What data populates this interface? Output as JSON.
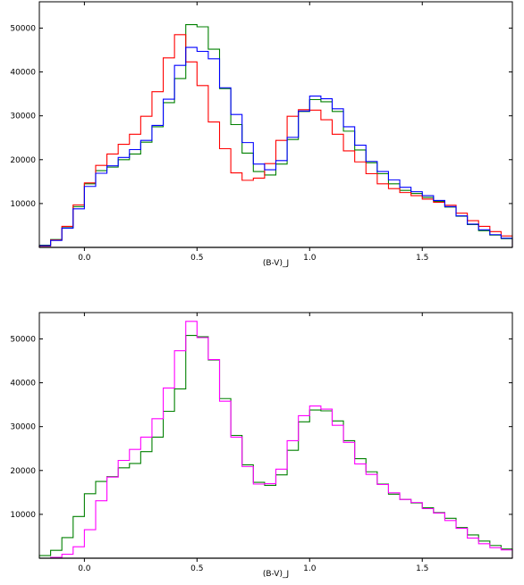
{
  "chart_data": [
    {
      "type": "line",
      "step": "histogram",
      "xlabel": "(B-V)_J",
      "ylabel": "",
      "title": "",
      "xlim": [
        -0.2,
        1.9
      ],
      "ylim": [
        0,
        56000
      ],
      "xticks": [
        0.0,
        0.5,
        1.0,
        1.5
      ],
      "xtick_labels": [
        "0.0",
        "0.5",
        "1.0",
        "1.5"
      ],
      "yticks": [
        10000,
        20000,
        30000,
        40000,
        50000
      ],
      "ytick_labels": [
        "10000",
        "20000",
        "30000",
        "40000",
        "50000"
      ],
      "bin_edges": [
        -0.2,
        -0.15,
        -0.1,
        -0.05,
        0.0,
        0.05,
        0.1,
        0.15,
        0.2,
        0.25,
        0.3,
        0.35,
        0.4,
        0.45,
        0.5,
        0.55,
        0.6,
        0.65,
        0.7,
        0.75,
        0.8,
        0.85,
        0.9,
        0.95,
        1.0,
        1.05,
        1.1,
        1.15,
        1.2,
        1.25,
        1.3,
        1.35,
        1.4,
        1.45,
        1.5,
        1.55,
        1.6,
        1.65,
        1.7,
        1.75,
        1.8,
        1.85,
        1.9
      ],
      "series": [
        {
          "color": "#008000",
          "values": [
            500,
            1800,
            4500,
            9300,
            14500,
            17500,
            18300,
            20000,
            21300,
            24000,
            27500,
            33000,
            38500,
            50800,
            50300,
            45200,
            36200,
            28000,
            21500,
            17300,
            16500,
            19000,
            24600,
            31000,
            33700,
            33200,
            31000,
            26500,
            22200,
            19300,
            16800,
            14500,
            13000,
            12300,
            11400,
            10500,
            9200,
            7100,
            5200,
            3800,
            2800,
            2000
          ]
        },
        {
          "color": "#ff0000",
          "values": [
            300,
            1700,
            4800,
            9700,
            14700,
            18700,
            21300,
            23500,
            25800,
            29900,
            35500,
            43200,
            48500,
            42300,
            36900,
            28600,
            22500,
            17000,
            15300,
            15800,
            19100,
            24400,
            29900,
            31400,
            31300,
            29100,
            25800,
            22000,
            19500,
            16800,
            14500,
            13400,
            12500,
            11800,
            11000,
            10300,
            9600,
            7800,
            6100,
            4800,
            3600,
            2600
          ]
        },
        {
          "color": "#0000ff",
          "values": [
            400,
            1600,
            4400,
            8800,
            13900,
            16900,
            18600,
            20500,
            22300,
            24400,
            27800,
            33800,
            41500,
            45600,
            44700,
            43000,
            36400,
            30300,
            23900,
            19000,
            17700,
            19800,
            25100,
            31100,
            34500,
            33900,
            31600,
            27500,
            23300,
            19600,
            17300,
            15400,
            13700,
            12700,
            11800,
            10700,
            9300,
            7200,
            5300,
            4000,
            2900,
            2100
          ]
        }
      ]
    },
    {
      "type": "line",
      "step": "histogram",
      "xlabel": "(B-V)_J",
      "ylabel": "",
      "title": "",
      "xlim": [
        -0.2,
        1.9
      ],
      "ylim": [
        0,
        56000
      ],
      "xticks": [
        0.0,
        0.5,
        1.0,
        1.5
      ],
      "xtick_labels": [
        "0.0",
        "0.5",
        "1.0",
        "1.5"
      ],
      "yticks": [
        10000,
        20000,
        30000,
        40000,
        50000
      ],
      "ytick_labels": [
        "10000",
        "20000",
        "30000",
        "40000",
        "50000"
      ],
      "bin_edges": [
        -0.2,
        -0.15,
        -0.1,
        -0.05,
        0.0,
        0.05,
        0.1,
        0.15,
        0.2,
        0.25,
        0.3,
        0.35,
        0.4,
        0.45,
        0.5,
        0.55,
        0.6,
        0.65,
        0.7,
        0.75,
        0.8,
        0.85,
        0.9,
        0.95,
        1.0,
        1.05,
        1.1,
        1.15,
        1.2,
        1.25,
        1.3,
        1.35,
        1.4,
        1.45,
        1.5,
        1.55,
        1.6,
        1.65,
        1.7,
        1.75,
        1.8,
        1.85,
        1.9
      ],
      "series": [
        {
          "color": "#008000",
          "values": [
            600,
            1800,
            4700,
            9500,
            14700,
            17500,
            18600,
            20600,
            21600,
            24300,
            27600,
            33500,
            38600,
            50800,
            50500,
            45200,
            36400,
            28000,
            21300,
            17300,
            16600,
            19000,
            24600,
            31100,
            33800,
            33600,
            31300,
            26800,
            22700,
            19700,
            16900,
            14600,
            13400,
            12600,
            11500,
            10400,
            9100,
            7000,
            5300,
            3900,
            2900,
            2100
          ]
        },
        {
          "color": "#ff00ff",
          "values": [
            0,
            200,
            900,
            2600,
            6500,
            13100,
            18500,
            22300,
            24800,
            27600,
            31800,
            38800,
            47300,
            54000,
            50300,
            45300,
            35800,
            27600,
            20900,
            16900,
            17000,
            20300,
            26800,
            32500,
            34700,
            34000,
            30300,
            26400,
            21500,
            19100,
            16800,
            14900,
            13400,
            12700,
            11300,
            10300,
            8600,
            6800,
            4600,
            3300,
            2400,
            1900
          ]
        }
      ]
    }
  ]
}
